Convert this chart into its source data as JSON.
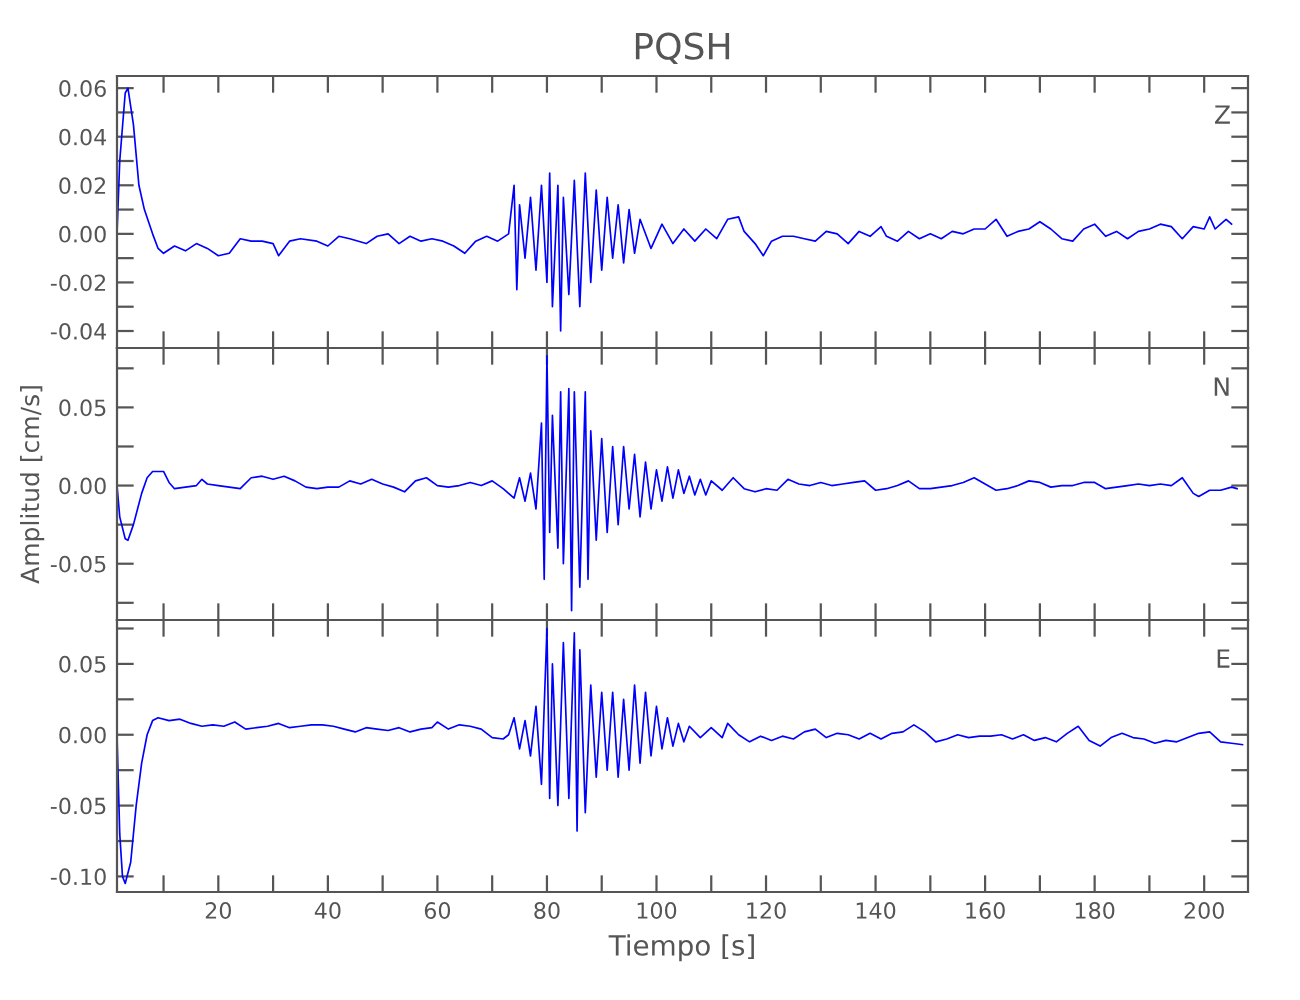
{
  "chart_data": [
    {
      "type": "line",
      "title": "PQSH",
      "annotations": [
        "Z"
      ],
      "xlim": [
        1.5,
        208
      ],
      "ylim": [
        -0.047,
        0.065
      ],
      "tick_labels": "y",
      "grid": false,
      "xticks": [
        {
          "value": 10,
          "label": null
        },
        {
          "value": 20,
          "label": null
        },
        {
          "value": 30,
          "label": null
        },
        {
          "value": 40,
          "label": null
        },
        {
          "value": 50,
          "label": null
        },
        {
          "value": 60,
          "label": null
        },
        {
          "value": 70,
          "label": null
        },
        {
          "value": 80,
          "label": null
        },
        {
          "value": 90,
          "label": null
        },
        {
          "value": 100,
          "label": null
        },
        {
          "value": 110,
          "label": null
        },
        {
          "value": 120,
          "label": null
        },
        {
          "value": 130,
          "label": null
        },
        {
          "value": 140,
          "label": null
        },
        {
          "value": 150,
          "label": null
        },
        {
          "value": 160,
          "label": null
        },
        {
          "value": 170,
          "label": null
        },
        {
          "value": 180,
          "label": null
        },
        {
          "value": 190,
          "label": null
        },
        {
          "value": 200,
          "label": null
        }
      ],
      "yticks": [
        {
          "value": -0.04,
          "label": "-0.04"
        },
        {
          "value": -0.03,
          "label": null
        },
        {
          "value": -0.02,
          "label": "-0.02"
        },
        {
          "value": -0.01,
          "label": null
        },
        {
          "value": 0,
          "label": "0.00"
        },
        {
          "value": 0.01,
          "label": null
        },
        {
          "value": 0.02,
          "label": "0.02"
        },
        {
          "value": 0.03,
          "label": null
        },
        {
          "value": 0.04,
          "label": "0.04"
        },
        {
          "value": 0.05,
          "label": null
        },
        {
          "value": 0.06,
          "label": "0.06"
        }
      ],
      "series": [
        {
          "color": "#0000ff",
          "x": [
            1.5,
            2,
            3,
            3.5,
            4.5,
            5.5,
            6.5,
            8,
            9,
            10,
            12,
            14,
            16,
            18,
            20,
            22,
            24,
            26,
            28,
            30,
            31,
            33,
            35,
            38,
            40,
            42,
            44,
            47,
            49,
            51,
            53,
            55,
            57,
            59,
            61,
            63,
            65,
            67,
            69,
            71,
            73,
            74,
            74.5,
            75,
            76,
            77,
            78,
            79,
            80,
            80.5,
            81,
            82,
            82.5,
            83,
            84,
            85,
            86,
            87,
            88,
            89,
            90,
            91,
            92,
            93,
            94,
            95,
            96,
            97,
            99,
            101,
            103,
            105,
            107,
            109,
            111,
            113,
            115,
            116,
            118,
            119.5,
            121,
            123,
            125,
            127,
            129,
            131,
            133,
            135,
            137,
            139,
            141,
            142,
            144,
            146,
            148,
            150,
            152,
            154,
            156,
            158,
            160,
            162,
            164,
            166,
            168,
            170,
            172,
            174,
            176,
            178,
            180,
            182,
            184,
            186,
            188,
            190,
            192,
            194,
            196,
            198,
            200,
            201,
            202,
            203,
            204,
            205
          ],
          "values": [
            0.0,
            0.03,
            0.058,
            0.06,
            0.045,
            0.02,
            0.01,
            0.0,
            -0.006,
            -0.008,
            -0.005,
            -0.007,
            -0.004,
            -0.006,
            -0.009,
            -0.008,
            -0.002,
            -0.003,
            -0.003,
            -0.004,
            -0.009,
            -0.003,
            -0.002,
            -0.003,
            -0.005,
            -0.001,
            -0.002,
            -0.004,
            -0.001,
            0.0,
            -0.004,
            -0.001,
            -0.003,
            -0.002,
            -0.003,
            -0.005,
            -0.008,
            -0.003,
            -0.001,
            -0.003,
            0.0,
            0.02,
            -0.023,
            0.012,
            -0.01,
            0.015,
            -0.015,
            0.02,
            -0.02,
            0.025,
            -0.03,
            0.02,
            -0.04,
            0.015,
            -0.025,
            0.022,
            -0.03,
            0.025,
            -0.02,
            0.018,
            -0.015,
            0.015,
            -0.01,
            0.012,
            -0.012,
            0.01,
            -0.008,
            0.006,
            -0.006,
            0.004,
            -0.004,
            0.002,
            -0.003,
            0.002,
            -0.002,
            0.006,
            0.007,
            0.001,
            -0.004,
            -0.009,
            -0.003,
            -0.001,
            -0.001,
            -0.002,
            -0.003,
            0.001,
            0.0,
            -0.004,
            0.001,
            -0.001,
            0.003,
            -0.001,
            -0.003,
            0.001,
            -0.002,
            0.0,
            -0.002,
            0.001,
            0.0,
            0.002,
            0.002,
            0.006,
            -0.001,
            0.001,
            0.002,
            0.005,
            0.002,
            -0.002,
            -0.003,
            0.002,
            0.004,
            -0.001,
            0.001,
            -0.002,
            0.001,
            0.002,
            0.004,
            0.003,
            -0.002,
            0.003,
            0.002,
            0.007,
            0.002,
            0.004,
            0.006,
            0.004
          ]
        }
      ]
    },
    {
      "type": "line",
      "ylabel": "Amplitud [cm/s]",
      "annotations": [
        "N"
      ],
      "xlim": [
        1.5,
        208
      ],
      "ylim": [
        -0.086,
        0.088
      ],
      "tick_labels": "y",
      "grid": false,
      "xticks": [
        {
          "value": 10,
          "label": null
        },
        {
          "value": 20,
          "label": null
        },
        {
          "value": 30,
          "label": null
        },
        {
          "value": 40,
          "label": null
        },
        {
          "value": 50,
          "label": null
        },
        {
          "value": 60,
          "label": null
        },
        {
          "value": 70,
          "label": null
        },
        {
          "value": 80,
          "label": null
        },
        {
          "value": 90,
          "label": null
        },
        {
          "value": 100,
          "label": null
        },
        {
          "value": 110,
          "label": null
        },
        {
          "value": 120,
          "label": null
        },
        {
          "value": 130,
          "label": null
        },
        {
          "value": 140,
          "label": null
        },
        {
          "value": 150,
          "label": null
        },
        {
          "value": 160,
          "label": null
        },
        {
          "value": 170,
          "label": null
        },
        {
          "value": 180,
          "label": null
        },
        {
          "value": 190,
          "label": null
        },
        {
          "value": 200,
          "label": null
        }
      ],
      "yticks": [
        {
          "value": -0.075,
          "label": null
        },
        {
          "value": -0.05,
          "label": "-0.05"
        },
        {
          "value": -0.025,
          "label": null
        },
        {
          "value": 0,
          "label": "0.00"
        },
        {
          "value": 0.025,
          "label": null
        },
        {
          "value": 0.05,
          "label": "0.05"
        },
        {
          "value": 0.075,
          "label": null
        }
      ],
      "series": [
        {
          "color": "#0000ff",
          "x": [
            1.5,
            2,
            3,
            3.5,
            4.5,
            6,
            7,
            8,
            10,
            11,
            12,
            14,
            16,
            17,
            18,
            20,
            22,
            24,
            26,
            28,
            30,
            32,
            34,
            36,
            38,
            40,
            42,
            44,
            46,
            48,
            50,
            52,
            54,
            56,
            58,
            60,
            62,
            64,
            66,
            68,
            70,
            72,
            74,
            75,
            76,
            77,
            78,
            79,
            79.5,
            80,
            80.5,
            81,
            82,
            82.5,
            83,
            84,
            84.5,
            85,
            86,
            87,
            87.5,
            88,
            89,
            90,
            91,
            92,
            93,
            94,
            95,
            96,
            97,
            98,
            99,
            100,
            101,
            102,
            103,
            104,
            105,
            106,
            107,
            108,
            109,
            110,
            112,
            114,
            116,
            118,
            120,
            122,
            124,
            126,
            128,
            130,
            132,
            134,
            136,
            138,
            140,
            142,
            144,
            146,
            148,
            150,
            152,
            154,
            156,
            158,
            160,
            162,
            164,
            166,
            168,
            170,
            172,
            174,
            176,
            178,
            180,
            182,
            184,
            186,
            188,
            190,
            192,
            194,
            196,
            198,
            199,
            201,
            203,
            205,
            206
          ],
          "values": [
            0.0,
            -0.02,
            -0.034,
            -0.035,
            -0.025,
            -0.005,
            0.005,
            0.009,
            0.009,
            0.002,
            -0.002,
            -0.001,
            0.0,
            0.004,
            0.001,
            0.0,
            -0.001,
            -0.002,
            0.005,
            0.006,
            0.004,
            0.006,
            0.003,
            -0.001,
            -0.002,
            -0.001,
            -0.001,
            0.003,
            0.001,
            0.004,
            0.001,
            -0.001,
            -0.004,
            0.003,
            0.005,
            0.0,
            -0.001,
            0.0,
            0.002,
            0.0,
            0.003,
            -0.002,
            -0.008,
            0.005,
            -0.01,
            0.008,
            -0.015,
            0.04,
            -0.06,
            0.083,
            -0.03,
            0.045,
            -0.04,
            0.06,
            -0.05,
            0.062,
            -0.08,
            0.06,
            -0.065,
            0.06,
            -0.06,
            0.035,
            -0.035,
            0.03,
            -0.03,
            0.025,
            -0.025,
            0.025,
            -0.015,
            0.02,
            -0.02,
            0.015,
            -0.015,
            0.01,
            -0.01,
            0.012,
            -0.008,
            0.01,
            -0.005,
            0.006,
            -0.006,
            0.004,
            -0.006,
            0.003,
            -0.003,
            0.005,
            -0.002,
            -0.004,
            -0.002,
            -0.003,
            0.004,
            0.001,
            0.0,
            0.002,
            0.0,
            0.001,
            0.002,
            0.003,
            -0.003,
            -0.002,
            0.0,
            0.003,
            -0.002,
            -0.002,
            -0.001,
            0.0,
            0.002,
            0.005,
            0.001,
            -0.003,
            -0.002,
            0.0,
            0.003,
            0.002,
            -0.001,
            0.0,
            0.0,
            0.002,
            0.002,
            -0.002,
            -0.001,
            0.0,
            0.001,
            0.0,
            0.001,
            0.0,
            0.005,
            -0.005,
            -0.007,
            -0.003,
            -0.003,
            -0.001,
            -0.002
          ]
        }
      ]
    },
    {
      "type": "line",
      "xlabel": "Tiempo [s]",
      "annotations": [
        "E"
      ],
      "xlim": [
        1.5,
        208
      ],
      "ylim": [
        -0.111,
        0.081
      ],
      "grid": false,
      "xticks": [
        {
          "value": 10,
          "label": null
        },
        20,
        {
          "value": 30,
          "label": null
        },
        40,
        {
          "value": 50,
          "label": null
        },
        60,
        {
          "value": 70,
          "label": null
        },
        80,
        {
          "value": 90,
          "label": null
        },
        100,
        {
          "value": 110,
          "label": null
        },
        120,
        {
          "value": 130,
          "label": null
        },
        140,
        {
          "value": 150,
          "label": null
        },
        160,
        {
          "value": 170,
          "label": null
        },
        180,
        {
          "value": 190,
          "label": null
        },
        200
      ],
      "yticks": [
        {
          "value": -0.1,
          "label": "-0.10"
        },
        {
          "value": -0.075,
          "label": null
        },
        {
          "value": -0.05,
          "label": "-0.05"
        },
        {
          "value": -0.025,
          "label": null
        },
        {
          "value": 0,
          "label": "0.00"
        },
        {
          "value": 0.025,
          "label": null
        },
        {
          "value": 0.05,
          "label": "0.05"
        },
        {
          "value": 0.075,
          "label": null
        }
      ],
      "series": [
        {
          "color": "#0000ff",
          "x": [
            1.5,
            2,
            2.5,
            3,
            4,
            5,
            6,
            7,
            8,
            9,
            11,
            13,
            15,
            17,
            19,
            21,
            23,
            25,
            27,
            29,
            31,
            33,
            35,
            37,
            39,
            41,
            43,
            45,
            47,
            49,
            51,
            53,
            55,
            57,
            59,
            60,
            62,
            64,
            66,
            68,
            70,
            72,
            73,
            74,
            75,
            76,
            77,
            78,
            79,
            80,
            80.5,
            81,
            82,
            83,
            84,
            85,
            85.5,
            86,
            87,
            88,
            89,
            90,
            91,
            92,
            93,
            94,
            95,
            96,
            97,
            98,
            99,
            100,
            101,
            102,
            103,
            104,
            105,
            106,
            108,
            110,
            112,
            113,
            115,
            117,
            119,
            121,
            123,
            125,
            127,
            129,
            131,
            133,
            135,
            137,
            139,
            141,
            143,
            145,
            147,
            149,
            151,
            153,
            155,
            157,
            159,
            161,
            163,
            165,
            167,
            169,
            171,
            173,
            175,
            177,
            179,
            181,
            183,
            185,
            187,
            189,
            191,
            193,
            195,
            197,
            199,
            201,
            203,
            205,
            207
          ],
          "values": [
            0.0,
            -0.07,
            -0.1,
            -0.105,
            -0.09,
            -0.05,
            -0.02,
            0.0,
            0.01,
            0.012,
            0.01,
            0.011,
            0.008,
            0.006,
            0.007,
            0.006,
            0.009,
            0.004,
            0.005,
            0.006,
            0.008,
            0.005,
            0.006,
            0.007,
            0.007,
            0.006,
            0.004,
            0.002,
            0.005,
            0.004,
            0.003,
            0.005,
            0.002,
            0.004,
            0.005,
            0.009,
            0.004,
            0.007,
            0.006,
            0.004,
            -0.002,
            -0.003,
            0.0,
            0.012,
            -0.01,
            0.01,
            -0.015,
            0.02,
            -0.035,
            0.075,
            -0.045,
            0.05,
            -0.05,
            0.065,
            -0.045,
            0.072,
            -0.068,
            0.06,
            -0.055,
            0.035,
            -0.03,
            0.03,
            -0.025,
            0.03,
            -0.03,
            0.025,
            -0.025,
            0.035,
            -0.02,
            0.03,
            -0.015,
            0.02,
            -0.01,
            0.012,
            -0.008,
            0.008,
            -0.005,
            0.006,
            -0.002,
            0.005,
            -0.002,
            0.008,
            0.0,
            -0.005,
            -0.001,
            -0.004,
            -0.001,
            -0.003,
            0.002,
            0.004,
            -0.002,
            0.001,
            0.0,
            -0.003,
            0.001,
            -0.003,
            0.001,
            0.002,
            0.007,
            0.002,
            -0.005,
            -0.003,
            0.0,
            -0.002,
            -0.001,
            -0.001,
            0.0,
            -0.003,
            0.0,
            -0.004,
            -0.002,
            -0.005,
            0.001,
            0.006,
            -0.004,
            -0.008,
            -0.002,
            0.001,
            -0.002,
            -0.003,
            -0.006,
            -0.004,
            -0.005,
            -0.002,
            0.001,
            0.002,
            -0.005,
            -0.006,
            -0.007
          ]
        }
      ]
    }
  ]
}
